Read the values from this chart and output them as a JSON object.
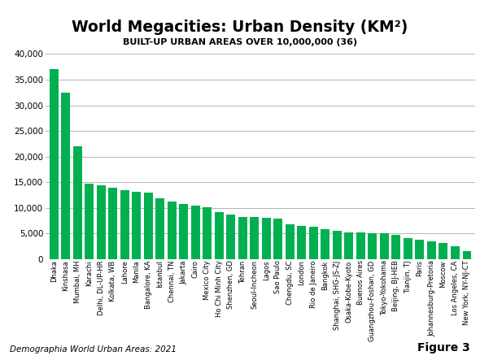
{
  "title": "World Megacities: Urban Density (KM²)",
  "subtitle": "BUILT-UP URBAN AREAS OVER 10,000,000 (36)",
  "footnote": "Demographia World Urban Areas: 2021",
  "figure_label": "Figure 3",
  "ylim": [
    0,
    40000
  ],
  "yticks": [
    0,
    5000,
    10000,
    15000,
    20000,
    25000,
    30000,
    35000,
    40000
  ],
  "bar_color": "#00b050",
  "background_color": "#ffffff",
  "categories": [
    "Dhaka",
    "Kinshasa",
    "Mumbai, MH",
    "Karachi",
    "Delhi, DL-UP-HR",
    "Kolkata, WB",
    "Lahore",
    "Manila",
    "Bangalore, KA",
    "Istanbul",
    "Chennai, TN",
    "Jakarta",
    "Cairo",
    "Mexico City",
    "Ho Chi Minh City",
    "Shenzhen, GD",
    "Tehran",
    "Seoul-Incheon",
    "Lagos",
    "Sao Paulo",
    "Chengdu, SC",
    "London",
    "Rio de Janeiro",
    "Bangkok",
    "Shanghai, SHG-JS-ZJ",
    "Osaka-Kobe-Kyoto",
    "Buenos Aires",
    "Guangzhou-Foshan, GD",
    "Tokyo-Yokohama",
    "Beijing, BJ-HEB",
    "Tianjin, TJ",
    "Paris",
    "Johannesburg-Pretoria",
    "Moscow",
    "Los Angeles, CA",
    "New York, NY-NJ-CT"
  ],
  "values": [
    37000,
    32500,
    22000,
    14800,
    14400,
    14000,
    13500,
    13100,
    13000,
    11800,
    11200,
    10800,
    10500,
    10200,
    9200,
    8700,
    8300,
    8200,
    8100,
    7900,
    6800,
    6500,
    6300,
    5800,
    5500,
    5300,
    5200,
    5100,
    5000,
    4800,
    4100,
    3800,
    3500,
    3100,
    2500,
    1600
  ]
}
